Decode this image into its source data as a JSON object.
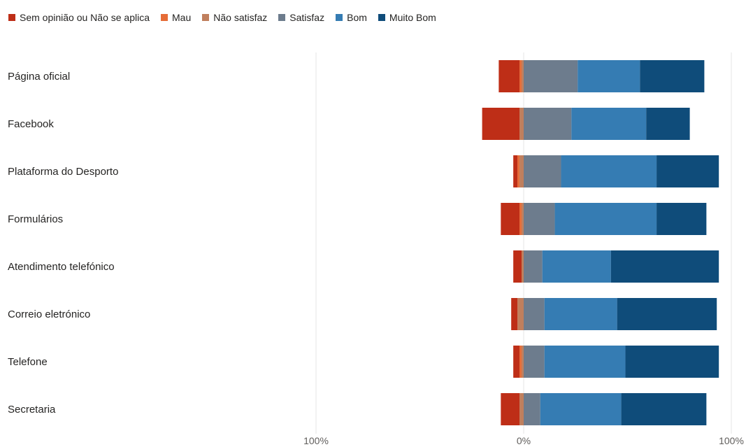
{
  "chart_data": {
    "type": "bar",
    "orientation": "horizontal",
    "stacking": "diverging",
    "categories": [
      "Página oficial",
      "Facebook",
      "Plataforma do Desporto",
      "Formulários",
      "Atendimento telefónico",
      "Correio eletrónico",
      "Telefone",
      "Secretaria"
    ],
    "series": [
      {
        "name": "Sem opinião ou Não se aplica",
        "color": "#be2e17",
        "values": [
          10,
          18,
          2,
          9,
          4,
          3,
          3,
          9
        ]
      },
      {
        "name": "Mau",
        "color": "#e66c37",
        "values": [
          1,
          0,
          1,
          1,
          0,
          0,
          1,
          0
        ]
      },
      {
        "name": "Não satisfaz",
        "color": "#c07f5d",
        "values": [
          1,
          2,
          2,
          1,
          1,
          3,
          1,
          2
        ]
      },
      {
        "name": "Satisfaz",
        "color": "#6d7c8d",
        "values": [
          26,
          23,
          18,
          15,
          9,
          10,
          10,
          8
        ]
      },
      {
        "name": "Bom",
        "color": "#357cb3",
        "values": [
          30,
          36,
          46,
          49,
          33,
          35,
          39,
          39
        ]
      },
      {
        "name": "Muito Bom",
        "color": "#0f4c7a",
        "values": [
          31,
          21,
          30,
          24,
          52,
          48,
          45,
          41
        ]
      }
    ],
    "negative_series": [
      "Sem opinião ou Não se aplica",
      "Mau",
      "Não satisfaz"
    ],
    "positive_series": [
      "Satisfaz",
      "Bom",
      "Muito Bom"
    ],
    "ticks": [
      {
        "value": -100,
        "label": "100%"
      },
      {
        "value": 0,
        "label": "0%"
      },
      {
        "value": 100,
        "label": "100%"
      }
    ],
    "xlim": [
      -100,
      100
    ],
    "grid": true,
    "legend_position": "top-left",
    "title": "",
    "xlabel": "",
    "ylabel": ""
  }
}
